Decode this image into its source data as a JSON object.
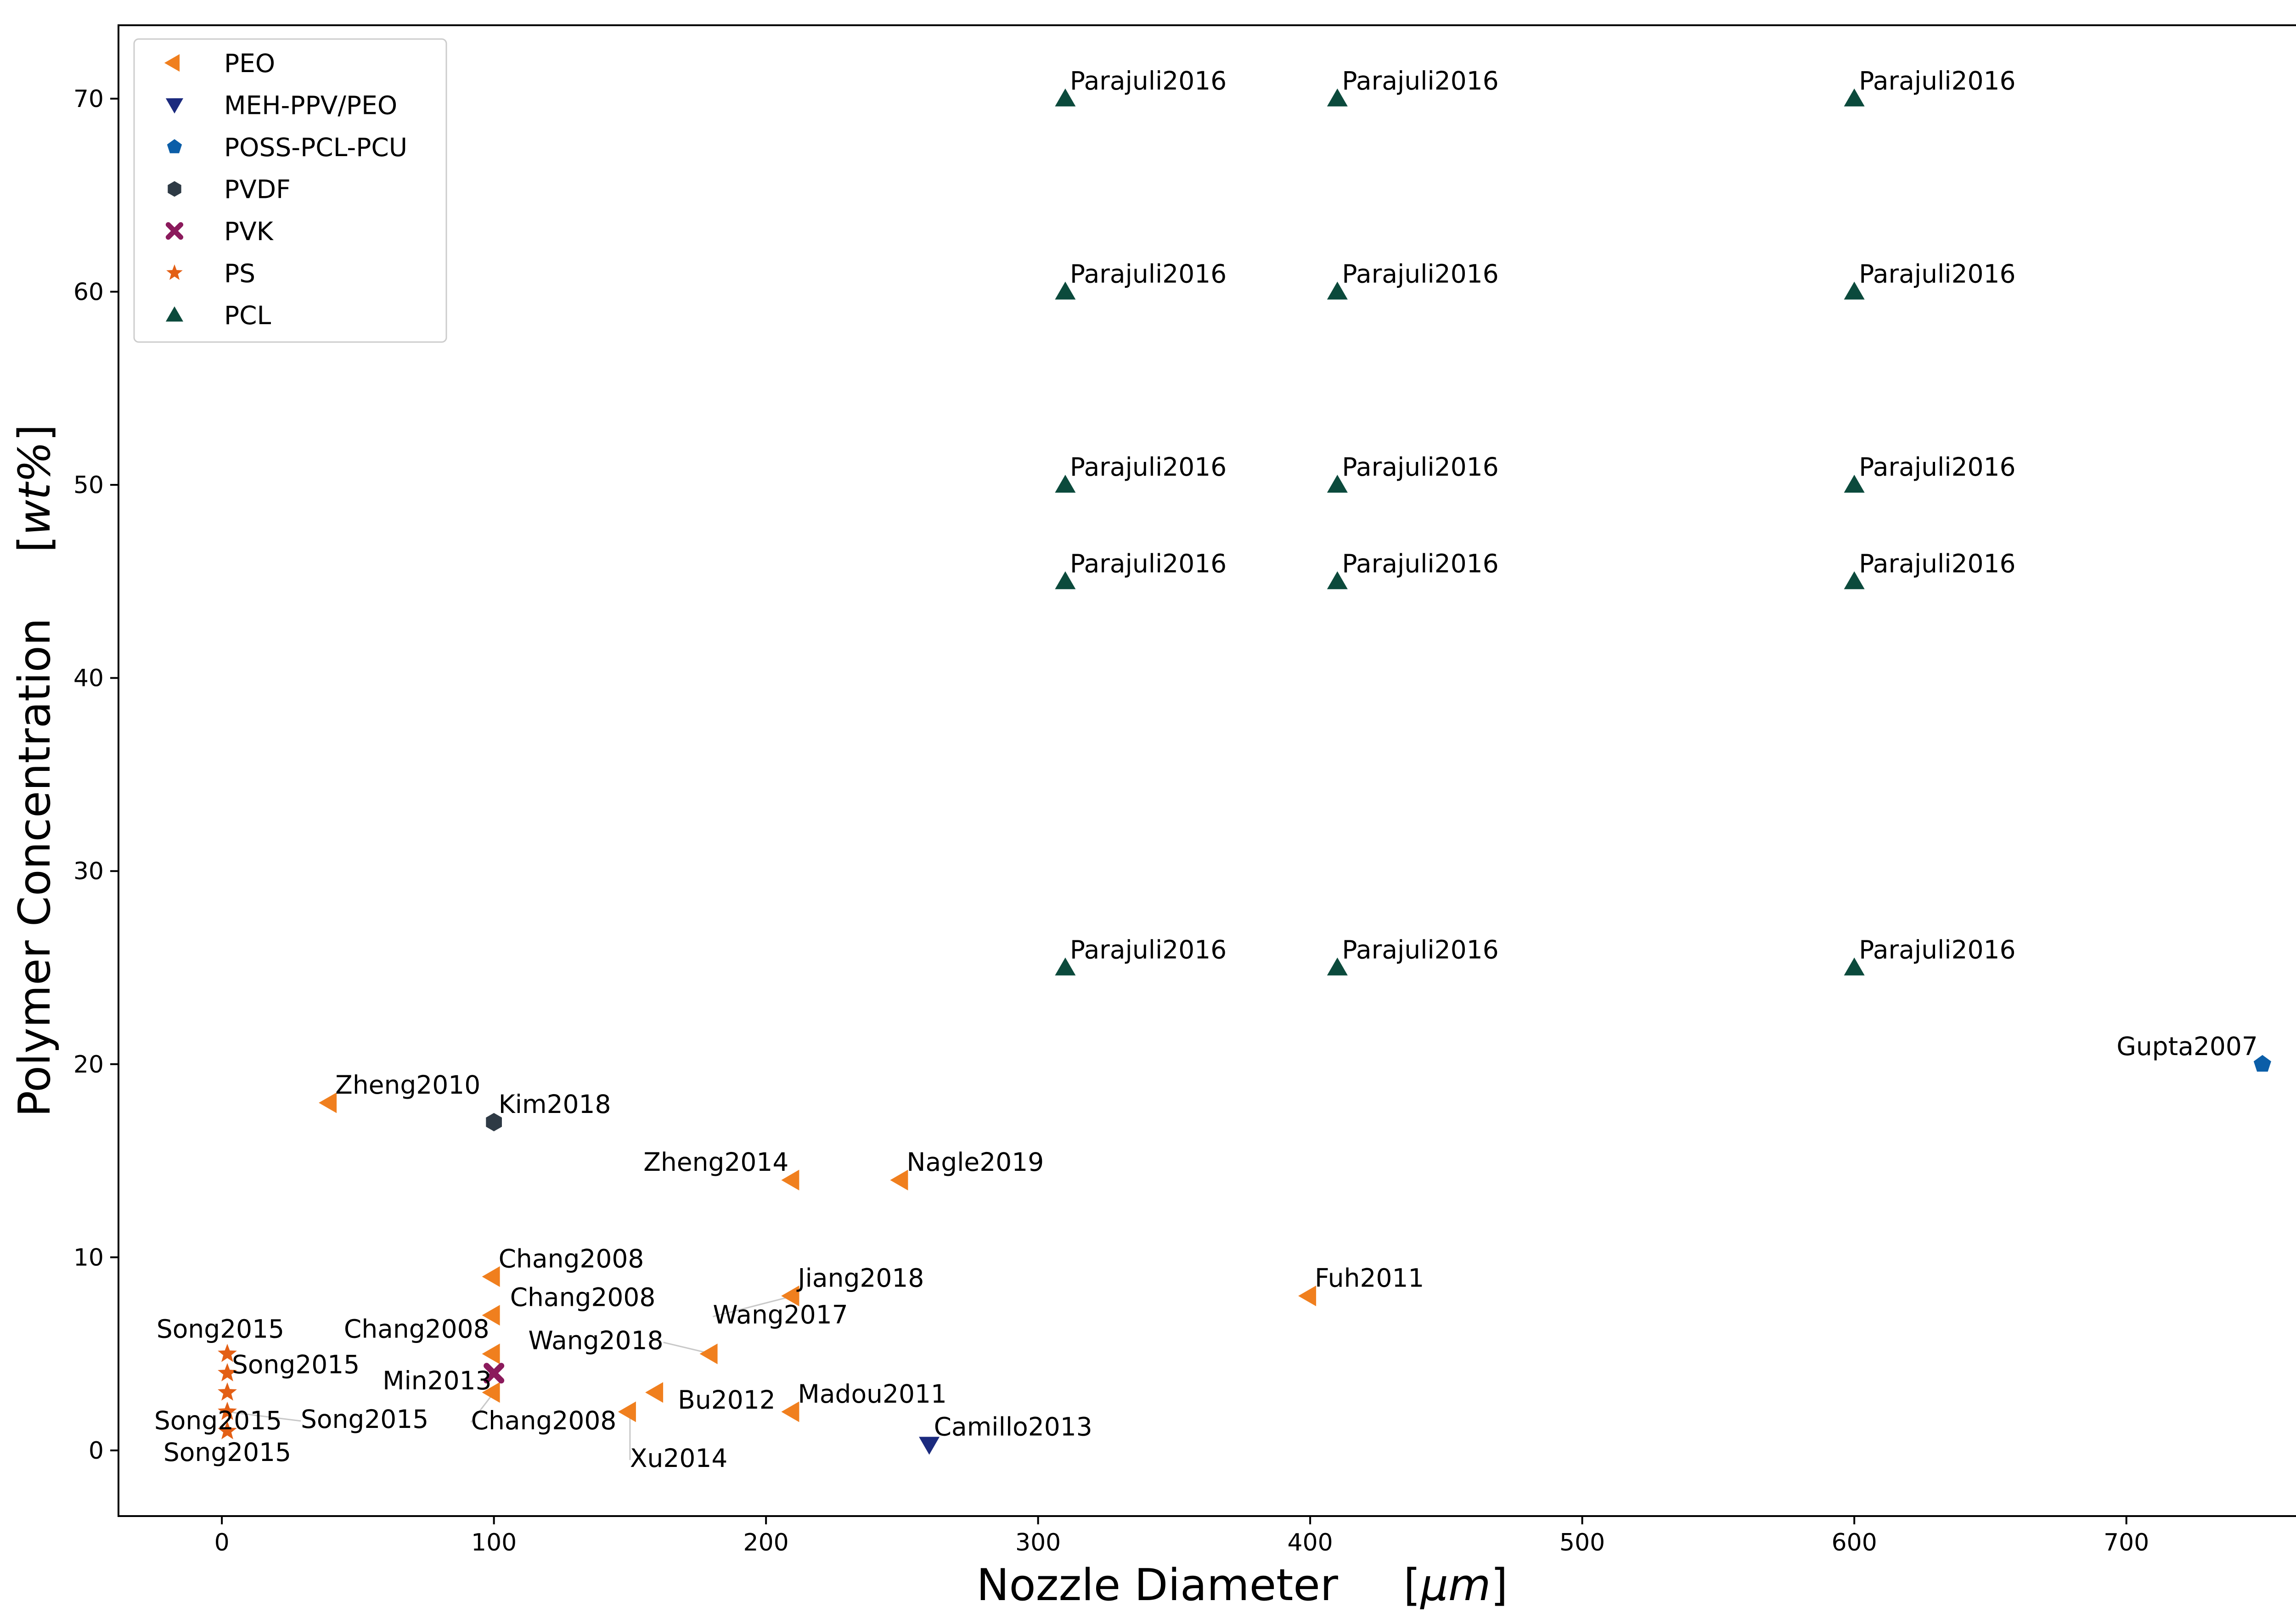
{
  "chart_data": {
    "type": "scatter",
    "xlabel": "Nozzle Diameter",
    "xlabel_unit": "μm",
    "ylabel": "Polymer Concentration",
    "ylabel_unit": "wt%",
    "xlim": [
      -38,
      788
    ],
    "ylim": [
      -3.4,
      73.8
    ],
    "xticks": [
      0,
      100,
      200,
      300,
      400,
      500,
      600,
      700
    ],
    "yticks": [
      0,
      10,
      20,
      30,
      40,
      50,
      60,
      70
    ],
    "grid": false,
    "legend": {
      "placement": "top-left",
      "entries": [
        "PEO",
        "MEH-PPV/PEO",
        "POSS-PCL-PCU",
        "PVDF",
        "PVK",
        "PS",
        "PCL"
      ]
    },
    "series": [
      {
        "name": "PEO",
        "marker": "triangle-left",
        "color": "#f07f1e",
        "points": [
          {
            "x": 40,
            "y": 18,
            "label": "Zheng2010"
          },
          {
            "x": 100,
            "y": 9,
            "label": "Chang2008"
          },
          {
            "x": 100,
            "y": 7,
            "label": "Chang2008"
          },
          {
            "x": 100,
            "y": 5,
            "label": "Chang2008"
          },
          {
            "x": 100,
            "y": 3,
            "label": "Chang2008"
          },
          {
            "x": 150,
            "y": 2,
            "label": "Xu2014"
          },
          {
            "x": 160,
            "y": 3,
            "label": "Bu2012"
          },
          {
            "x": 180,
            "y": 5,
            "label": "Wang2018"
          },
          {
            "x": 210,
            "y": 2,
            "label": "Madou2011"
          },
          {
            "x": 210,
            "y": 8,
            "label": "Jiang2018"
          },
          {
            "x": 210,
            "y": 8,
            "label": "Wang2017"
          },
          {
            "x": 210,
            "y": 14,
            "label": "Zheng2014"
          },
          {
            "x": 250,
            "y": 14,
            "label": "Nagle2019"
          },
          {
            "x": 400,
            "y": 8,
            "label": "Fuh2011"
          }
        ]
      },
      {
        "name": "MEH-PPV/PEO",
        "marker": "triangle-down",
        "color": "#1b2a7e",
        "points": [
          {
            "x": 260,
            "y": 0.3,
            "label": "Camillo2013"
          }
        ]
      },
      {
        "name": "POSS-PCL-PCU",
        "marker": "pentagon",
        "color": "#0b5ea8",
        "points": [
          {
            "x": 750,
            "y": 20,
            "label": "Gupta2007"
          }
        ]
      },
      {
        "name": "PVDF",
        "marker": "hexagon",
        "color": "#2e3a45",
        "points": [
          {
            "x": 100,
            "y": 17,
            "label": "Kim2018"
          }
        ]
      },
      {
        "name": "PVK",
        "marker": "x",
        "color": "#8b1a5c",
        "points": [
          {
            "x": 100,
            "y": 4,
            "label": "Min2013"
          }
        ]
      },
      {
        "name": "PS",
        "marker": "star",
        "color": "#e35f15",
        "points": [
          {
            "x": 2,
            "y": 5,
            "label": "Song2015"
          },
          {
            "x": 2,
            "y": 4,
            "label": "Song2015"
          },
          {
            "x": 2,
            "y": 3,
            "label": "Song2015"
          },
          {
            "x": 2,
            "y": 2,
            "label": "Song2015"
          },
          {
            "x": 2,
            "y": 1,
            "label": "Song2015"
          }
        ]
      },
      {
        "name": "PCL",
        "marker": "triangle-up",
        "color": "#0b4a3c",
        "points": [
          {
            "x": 310,
            "y": 70,
            "label": "Parajuli2016"
          },
          {
            "x": 410,
            "y": 70,
            "label": "Parajuli2016"
          },
          {
            "x": 600,
            "y": 70,
            "label": "Parajuli2016"
          },
          {
            "x": 310,
            "y": 60,
            "label": "Parajuli2016"
          },
          {
            "x": 410,
            "y": 60,
            "label": "Parajuli2016"
          },
          {
            "x": 600,
            "y": 60,
            "label": "Parajuli2016"
          },
          {
            "x": 310,
            "y": 50,
            "label": "Parajuli2016"
          },
          {
            "x": 410,
            "y": 50,
            "label": "Parajuli2016"
          },
          {
            "x": 600,
            "y": 50,
            "label": "Parajuli2016"
          },
          {
            "x": 310,
            "y": 45,
            "label": "Parajuli2016"
          },
          {
            "x": 410,
            "y": 45,
            "label": "Parajuli2016"
          },
          {
            "x": 600,
            "y": 45,
            "label": "Parajuli2016"
          },
          {
            "x": 310,
            "y": 25,
            "label": "Parajuli2016"
          },
          {
            "x": 410,
            "y": 25,
            "label": "Parajuli2016"
          },
          {
            "x": 600,
            "y": 25,
            "label": "Parajuli2016"
          }
        ]
      }
    ]
  }
}
